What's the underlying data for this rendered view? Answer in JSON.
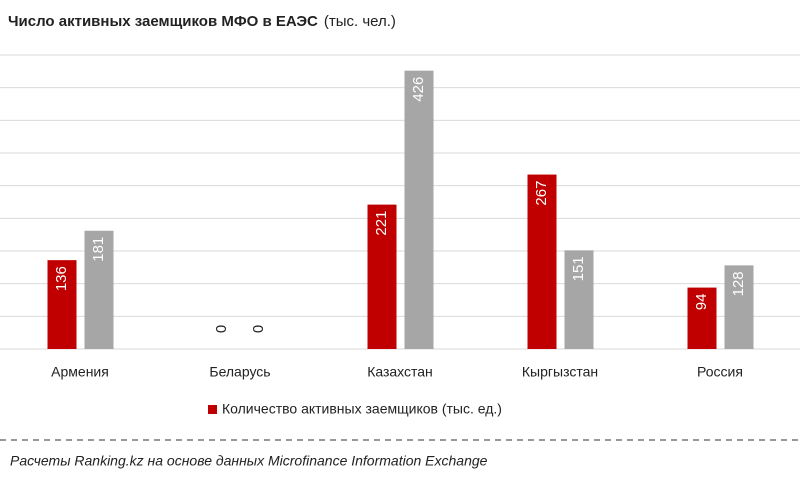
{
  "chart_data": {
    "type": "bar",
    "title": "Число активных заемщиков МФО в ЕАЭС",
    "subtitle": "(тыс. чел.)",
    "categories": [
      "Армения",
      "Беларусь",
      "Казахстан",
      "Кыргызстан",
      "Россия"
    ],
    "series": [
      {
        "name": "Количество активных заемщиков (тыс. ед.)",
        "color": "#c00000",
        "values": [
          136,
          0,
          221,
          267,
          94
        ]
      },
      {
        "color": "#a6a6a6",
        "values": [
          181,
          0,
          426,
          151,
          128
        ]
      }
    ],
    "ylim": [
      0,
      450
    ],
    "yticks": [
      0,
      50,
      100,
      150,
      200,
      250,
      300,
      350,
      400,
      450
    ],
    "grid": true,
    "source": "Расчеты Ranking.kz на основе данных Microfinance Information Exchange"
  }
}
